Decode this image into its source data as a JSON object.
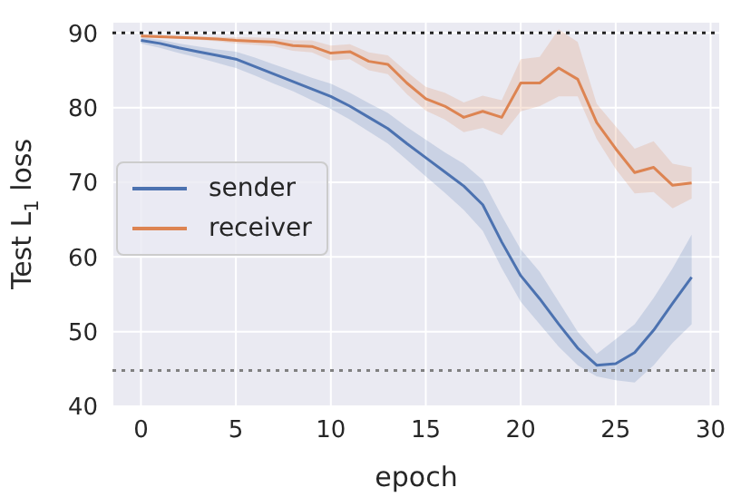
{
  "chart_data": {
    "type": "line",
    "xlabel": "epoch",
    "ylabel": "Test L$_{1}$ loss",
    "x": [
      0,
      1,
      2,
      3,
      4,
      5,
      6,
      7,
      8,
      9,
      10,
      11,
      12,
      13,
      14,
      15,
      16,
      17,
      18,
      19,
      20,
      21,
      22,
      23,
      24,
      25,
      26,
      27,
      28,
      29
    ],
    "series": [
      {
        "name": "sender",
        "color": "#4c72b0",
        "values": [
          89,
          88.6,
          88,
          87.5,
          87,
          86.5,
          85.5,
          84.5,
          83.5,
          82.5,
          81.5,
          80.2,
          78.7,
          77.2,
          75.2,
          73.3,
          71.4,
          69.5,
          67,
          62,
          57.5,
          54.4,
          51,
          47.8,
          45.5,
          45.7,
          47.2,
          50.2,
          53.8,
          57.3
        ],
        "lower": [
          88.6,
          88,
          87.3,
          86.7,
          86,
          85.3,
          84.3,
          83.2,
          82.2,
          81,
          79.8,
          78.4,
          76.8,
          75.2,
          73,
          70.8,
          68.6,
          66.3,
          63.5,
          58.5,
          54,
          51,
          48,
          45.5,
          44,
          43.5,
          43.2,
          45.5,
          48.5,
          51
        ],
        "upper": [
          89.4,
          89.1,
          88.6,
          88.2,
          87.8,
          87.5,
          86.7,
          85.8,
          84.9,
          84,
          83.2,
          82,
          80.6,
          79.3,
          77.4,
          75.7,
          74,
          72.5,
          70.3,
          65.5,
          61,
          58,
          54,
          50,
          47,
          49,
          51,
          54.5,
          58.5,
          63
        ]
      },
      {
        "name": "receiver",
        "color": "#dd8452",
        "values": [
          89.6,
          89.5,
          89.4,
          89.3,
          89.2,
          89,
          88.9,
          88.8,
          88.3,
          88.2,
          87.3,
          87.5,
          86.2,
          85.8,
          83.3,
          81.2,
          80.2,
          78.7,
          79.5,
          78.7,
          83.3,
          83.3,
          85.3,
          83.8,
          78,
          74.5,
          71.3,
          72,
          69.6,
          69.9
        ],
        "lower": [
          89.5,
          89.4,
          89.2,
          89.1,
          88.9,
          88.6,
          88.4,
          88.2,
          87.6,
          87.4,
          86.3,
          86.5,
          85,
          84.5,
          81.8,
          79.6,
          78.4,
          76.7,
          77.3,
          76.3,
          79.5,
          80.2,
          81.5,
          81.5,
          75.8,
          71.8,
          68.5,
          68.7,
          66.5,
          67.8
        ],
        "upper": [
          89.8,
          89.7,
          89.6,
          89.5,
          89.5,
          89.4,
          89.4,
          89.3,
          89,
          89,
          88.3,
          88.5,
          87.4,
          87,
          84.8,
          82.8,
          82,
          80.7,
          81.6,
          81,
          86.5,
          86.8,
          90.5,
          88.8,
          80.5,
          77.5,
          74.5,
          75.5,
          72.5,
          72
        ]
      }
    ],
    "xlim": [
      -1.5,
      30.5
    ],
    "xticks": [
      0,
      5,
      10,
      15,
      20,
      25,
      30
    ],
    "ylim": [
      40,
      91.5
    ],
    "yticks": [
      40,
      50,
      60,
      70,
      80,
      90
    ],
    "ref_lines": [
      {
        "axis": "y",
        "value": 90,
        "color": "#222222",
        "line_style": "dotted"
      },
      {
        "axis": "y",
        "value": 44.8,
        "color": "#808080",
        "line_style": "dotted"
      }
    ],
    "grid": true,
    "legend": "center left",
    "marker": "none",
    "line_style": "solid"
  }
}
